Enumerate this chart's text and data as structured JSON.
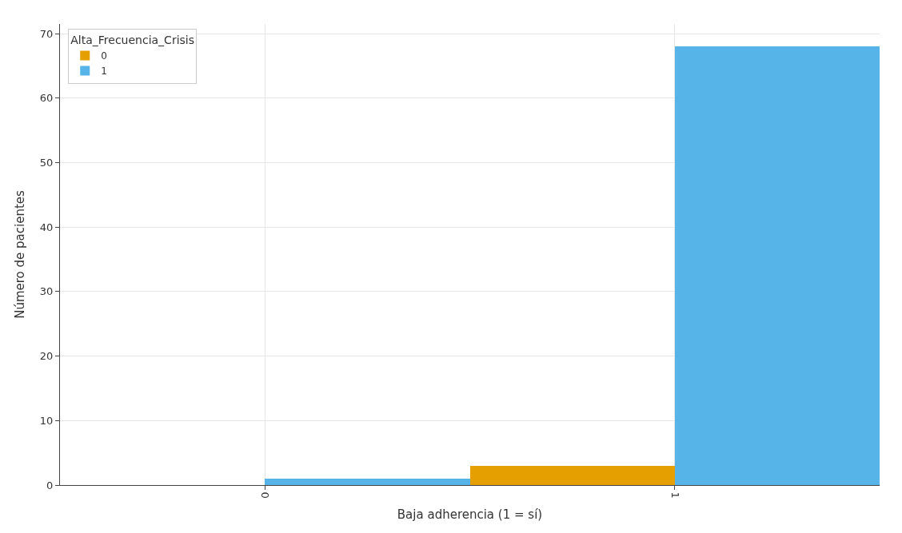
{
  "chart_data": {
    "type": "bar",
    "xlabel": "Baja adherencia (1 = sí)",
    "ylabel": "Número de pacientes",
    "legend_title": "Alta_Frecuencia_Crisis",
    "categories": [
      "0",
      "1"
    ],
    "series": [
      {
        "name": "0",
        "color": "#e69f00",
        "values": [
          0,
          3
        ]
      },
      {
        "name": "1",
        "color": "#56b4e9",
        "values": [
          1,
          68
        ]
      }
    ],
    "ylim": [
      0,
      71.5
    ],
    "yticks": [
      0,
      10,
      20,
      30,
      40,
      50,
      60,
      70
    ],
    "grid": true,
    "legend": "top left"
  }
}
